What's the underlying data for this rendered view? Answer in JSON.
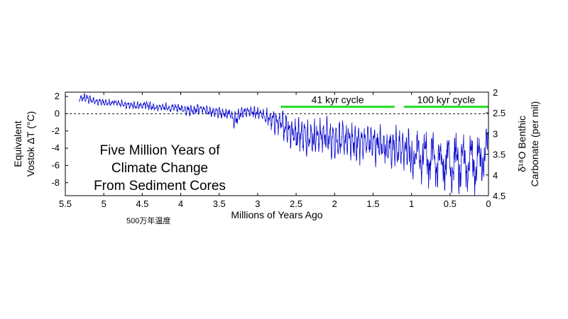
{
  "chart_data": {
    "type": "line",
    "title_lines": [
      "Five Million Years of",
      "Climate Change",
      "From Sediment Cores"
    ],
    "xlabel": "Millions of Years Ago",
    "ylabel_left_lines": [
      "Equivalent",
      "Vostok ΔT (°C)"
    ],
    "ylabel_right_lines": [
      "δ¹⁸O Benthic",
      "Carbonate (per mil)"
    ],
    "xlim": [
      5.5,
      0
    ],
    "ylim_left": [
      -9.5,
      2.5
    ],
    "ylim_right": [
      2,
      4.5
    ],
    "x_ticks": [
      "5.5",
      "5",
      "4.5",
      "4",
      "3.5",
      "3",
      "2.5",
      "2",
      "1.5",
      "1",
      "0.5",
      "0"
    ],
    "y_ticks_left": [
      "2",
      "0",
      "-2",
      "-4",
      "-6",
      "-8"
    ],
    "y_ticks_right": [
      "2",
      "2.5",
      "3",
      "3.5",
      "4",
      "4.5"
    ],
    "reference_line_y": 0,
    "series": [
      {
        "color": "#0000cc",
        "x": [
          5.32,
          5.25,
          5.15,
          5.05,
          4.95,
          4.85,
          4.75,
          4.65,
          4.55,
          4.45,
          4.35,
          4.25,
          4.15,
          4.05,
          3.95,
          3.85,
          3.75,
          3.65,
          3.55,
          3.45,
          3.35,
          3.3,
          3.25,
          3.2,
          3.15,
          3.05,
          2.95,
          2.85,
          2.75,
          2.65,
          2.55,
          2.45,
          2.35,
          2.25,
          2.15,
          2.05,
          1.95,
          1.85,
          1.75,
          1.65,
          1.55,
          1.45,
          1.35,
          1.25,
          1.15,
          1.05,
          0.95,
          0.85,
          0.75,
          0.65,
          0.55,
          0.45,
          0.35,
          0.25,
          0.15,
          0.05,
          0
        ],
        "y": [
          1.6,
          1.9,
          1.5,
          1.4,
          1.2,
          1.3,
          1.1,
          1.0,
          0.9,
          1.0,
          0.7,
          0.8,
          0.6,
          0.7,
          0.5,
          0.4,
          0.6,
          0.3,
          0.2,
          0.1,
          0.0,
          -0.8,
          -0.3,
          0.2,
          0.3,
          0.1,
          -0.1,
          -0.6,
          -1.0,
          -1.4,
          -2.2,
          -2.4,
          -2.6,
          -2.8,
          -2.5,
          -2.9,
          -3.0,
          -3.1,
          -3.3,
          -3.4,
          -3.2,
          -3.6,
          -3.8,
          -4.0,
          -4.1,
          -4.3,
          -4.6,
          -4.8,
          -5.2,
          -5.5,
          -5.3,
          -5.6,
          -5.9,
          -5.4,
          -5.8,
          -5.0,
          -4.0
        ],
        "amplitude": [
          0.5,
          0.6,
          0.6,
          0.5,
          0.5,
          0.5,
          0.5,
          0.5,
          0.6,
          0.6,
          0.5,
          0.6,
          0.6,
          0.6,
          0.7,
          0.7,
          0.7,
          0.7,
          0.8,
          0.8,
          0.8,
          1.2,
          1.0,
          0.8,
          0.7,
          0.8,
          0.9,
          1.2,
          1.6,
          2.0,
          2.2,
          2.3,
          2.4,
          2.4,
          2.4,
          2.4,
          2.5,
          2.5,
          2.5,
          2.5,
          2.6,
          2.6,
          2.6,
          2.7,
          2.8,
          3.0,
          3.2,
          3.4,
          3.6,
          3.8,
          3.6,
          3.8,
          3.9,
          3.7,
          3.8,
          3.6,
          3.0
        ]
      }
    ],
    "annotations": [
      {
        "label": "41 kyr cycle",
        "x_start": 2.7,
        "x_end": 1.22,
        "y": 0.8,
        "color": "#22dd22"
      },
      {
        "label": "100 kyr cycle",
        "x_start": 1.1,
        "x_end": 0.0,
        "y": 0.8,
        "color": "#22dd22"
      }
    ]
  },
  "caption": "500万年温度"
}
